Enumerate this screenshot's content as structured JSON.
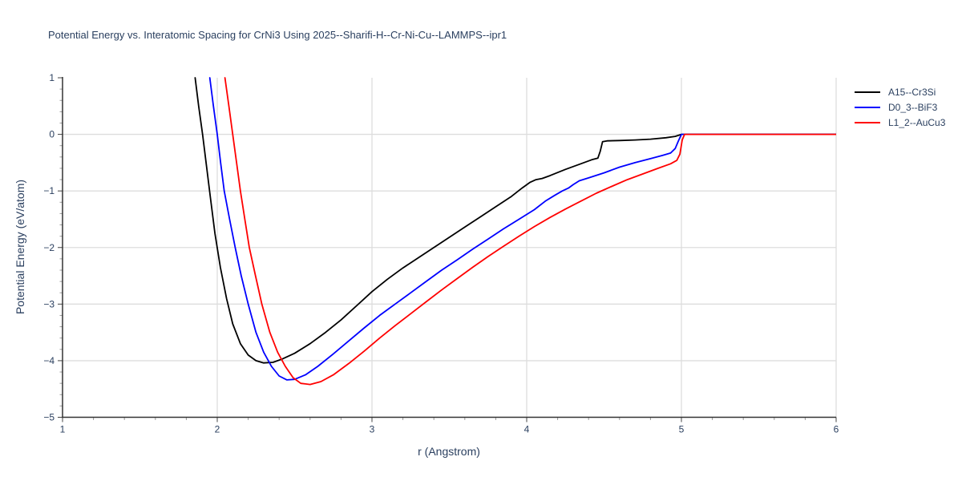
{
  "chart_data": {
    "type": "line",
    "title": "Potential Energy vs. Interatomic Spacing for CrNi3 Using 2025--Sharifi-H--Cr-Ni-Cu--LAMMPS--ipr1",
    "xlabel": "r (Angstrom)",
    "ylabel": "Potential Energy (eV/atom)",
    "xlim": [
      1,
      6
    ],
    "ylim": [
      -5,
      1
    ],
    "x_ticks": [
      1,
      2,
      3,
      4,
      5,
      6
    ],
    "x_tick_labels": [
      "1",
      "2",
      "3",
      "4",
      "5",
      "6"
    ],
    "y_ticks": [
      1,
      0,
      -1,
      -2,
      -3,
      -4,
      -5
    ],
    "y_tick_labels": [
      "1",
      "0",
      "−1",
      "−2",
      "−3",
      "−4",
      "−5"
    ],
    "x_minor_step": 0.2,
    "y_minor_step": 0.2,
    "x_grid": [
      2,
      3,
      4,
      5,
      6
    ],
    "y_grid": [
      0,
      -1,
      -2,
      -3,
      -4
    ],
    "grid": true,
    "legend_position": "outside-top-right",
    "colors": {
      "text": "#2a3f5f",
      "grid": "#dddddd",
      "axis": "#333333",
      "major_tick": "#444444",
      "minor_tick": "#999999",
      "background": "#ffffff"
    },
    "series": [
      {
        "name": "A15--Cr3Si",
        "color": "#000000",
        "points": [
          [
            1.857,
            1.0
          ],
          [
            1.88,
            0.5
          ],
          [
            1.905,
            0.0
          ],
          [
            1.93,
            -0.55
          ],
          [
            1.955,
            -1.1
          ],
          [
            1.985,
            -1.75
          ],
          [
            2.02,
            -2.35
          ],
          [
            2.06,
            -2.9
          ],
          [
            2.1,
            -3.35
          ],
          [
            2.15,
            -3.7
          ],
          [
            2.2,
            -3.9
          ],
          [
            2.25,
            -4.0
          ],
          [
            2.3,
            -4.04
          ],
          [
            2.36,
            -4.03
          ],
          [
            2.42,
            -3.97
          ],
          [
            2.5,
            -3.87
          ],
          [
            2.6,
            -3.7
          ],
          [
            2.7,
            -3.5
          ],
          [
            2.8,
            -3.28
          ],
          [
            2.9,
            -3.03
          ],
          [
            3.0,
            -2.78
          ],
          [
            3.1,
            -2.56
          ],
          [
            3.2,
            -2.36
          ],
          [
            3.3,
            -2.18
          ],
          [
            3.4,
            -2.0
          ],
          [
            3.5,
            -1.82
          ],
          [
            3.6,
            -1.64
          ],
          [
            3.7,
            -1.46
          ],
          [
            3.8,
            -1.28
          ],
          [
            3.9,
            -1.1
          ],
          [
            3.97,
            -0.95
          ],
          [
            4.02,
            -0.85
          ],
          [
            4.06,
            -0.8
          ],
          [
            4.1,
            -0.78
          ],
          [
            4.15,
            -0.73
          ],
          [
            4.25,
            -0.62
          ],
          [
            4.35,
            -0.52
          ],
          [
            4.42,
            -0.45
          ],
          [
            4.46,
            -0.42
          ],
          [
            4.475,
            -0.3
          ],
          [
            4.49,
            -0.13
          ],
          [
            4.52,
            -0.115
          ],
          [
            4.6,
            -0.11
          ],
          [
            4.7,
            -0.1
          ],
          [
            4.8,
            -0.085
          ],
          [
            4.9,
            -0.06
          ],
          [
            4.96,
            -0.035
          ],
          [
            5.0,
            0.0
          ],
          [
            6.0,
            0.0
          ]
        ]
      },
      {
        "name": "D0_3--BiF3",
        "color": "#0000ff",
        "points": [
          [
            1.952,
            1.0
          ],
          [
            1.975,
            0.5
          ],
          [
            2.0,
            0.0
          ],
          [
            2.022,
            -0.5
          ],
          [
            2.045,
            -1.0
          ],
          [
            2.08,
            -1.5
          ],
          [
            2.116,
            -2.0
          ],
          [
            2.155,
            -2.5
          ],
          [
            2.2,
            -3.0
          ],
          [
            2.25,
            -3.5
          ],
          [
            2.3,
            -3.85
          ],
          [
            2.35,
            -4.1
          ],
          [
            2.4,
            -4.27
          ],
          [
            2.45,
            -4.34
          ],
          [
            2.5,
            -4.33
          ],
          [
            2.57,
            -4.25
          ],
          [
            2.65,
            -4.1
          ],
          [
            2.75,
            -3.88
          ],
          [
            2.85,
            -3.65
          ],
          [
            2.95,
            -3.42
          ],
          [
            3.05,
            -3.2
          ],
          [
            3.15,
            -3.0
          ],
          [
            3.25,
            -2.8
          ],
          [
            3.35,
            -2.6
          ],
          [
            3.45,
            -2.4
          ],
          [
            3.55,
            -2.22
          ],
          [
            3.65,
            -2.03
          ],
          [
            3.75,
            -1.85
          ],
          [
            3.85,
            -1.67
          ],
          [
            3.95,
            -1.5
          ],
          [
            4.05,
            -1.33
          ],
          [
            4.12,
            -1.18
          ],
          [
            4.18,
            -1.08
          ],
          [
            4.23,
            -1.0
          ],
          [
            4.27,
            -0.95
          ],
          [
            4.3,
            -0.89
          ],
          [
            4.34,
            -0.82
          ],
          [
            4.4,
            -0.77
          ],
          [
            4.5,
            -0.68
          ],
          [
            4.6,
            -0.58
          ],
          [
            4.7,
            -0.5
          ],
          [
            4.8,
            -0.43
          ],
          [
            4.88,
            -0.37
          ],
          [
            4.93,
            -0.33
          ],
          [
            4.96,
            -0.25
          ],
          [
            4.98,
            -0.12
          ],
          [
            5.0,
            0.0
          ],
          [
            6.0,
            0.0
          ]
        ]
      },
      {
        "name": "L1_2--AuCu3",
        "color": "#ff0000",
        "points": [
          [
            2.05,
            1.0
          ],
          [
            2.075,
            0.5
          ],
          [
            2.1,
            0.0
          ],
          [
            2.125,
            -0.5
          ],
          [
            2.15,
            -1.0
          ],
          [
            2.178,
            -1.5
          ],
          [
            2.207,
            -2.0
          ],
          [
            2.247,
            -2.5
          ],
          [
            2.288,
            -3.0
          ],
          [
            2.34,
            -3.5
          ],
          [
            2.39,
            -3.85
          ],
          [
            2.44,
            -4.1
          ],
          [
            2.49,
            -4.3
          ],
          [
            2.54,
            -4.4
          ],
          [
            2.6,
            -4.42
          ],
          [
            2.67,
            -4.37
          ],
          [
            2.75,
            -4.25
          ],
          [
            2.85,
            -4.05
          ],
          [
            2.95,
            -3.83
          ],
          [
            3.05,
            -3.6
          ],
          [
            3.15,
            -3.38
          ],
          [
            3.25,
            -3.17
          ],
          [
            3.35,
            -2.96
          ],
          [
            3.45,
            -2.75
          ],
          [
            3.55,
            -2.55
          ],
          [
            3.65,
            -2.35
          ],
          [
            3.75,
            -2.16
          ],
          [
            3.85,
            -1.98
          ],
          [
            3.95,
            -1.8
          ],
          [
            4.05,
            -1.63
          ],
          [
            4.15,
            -1.47
          ],
          [
            4.25,
            -1.32
          ],
          [
            4.35,
            -1.18
          ],
          [
            4.45,
            -1.04
          ],
          [
            4.55,
            -0.92
          ],
          [
            4.65,
            -0.8
          ],
          [
            4.75,
            -0.7
          ],
          [
            4.85,
            -0.6
          ],
          [
            4.93,
            -0.52
          ],
          [
            4.97,
            -0.46
          ],
          [
            4.99,
            -0.35
          ],
          [
            5.005,
            -0.1
          ],
          [
            5.02,
            0.0
          ],
          [
            6.0,
            0.0
          ]
        ]
      }
    ]
  }
}
